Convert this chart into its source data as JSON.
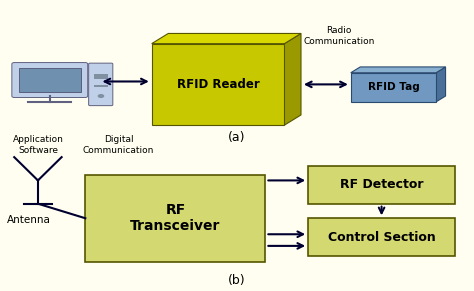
{
  "bg_color": "#fffef0",
  "top_bg": "#fffef0",
  "bot_bg": "#fffef0",
  "rfid_reader_color": "#c8c800",
  "rfid_reader_color2": "#d4d400",
  "rfid_tag_color": "#7098c0",
  "rf_transceiver_color": "#d4d870",
  "rf_detector_color": "#d4d870",
  "control_section_color": "#d4d870",
  "text_color": "#000000",
  "arrow_color": "#000030",
  "label_a": "(a)",
  "label_b": "(b)",
  "rfid_reader_text": "RFID Reader",
  "rfid_tag_text": "RFID Tag",
  "radio_comm_text": "Radio\nCommunication",
  "app_soft_text": "Application\nSoftware",
  "dig_comm_text": "Digital\nCommunication",
  "antenna_text": "Antenna",
  "rf_transceiver_text": "RF\nTransceiver",
  "rf_detector_text": "RF Detector",
  "control_section_text": "Control Section"
}
